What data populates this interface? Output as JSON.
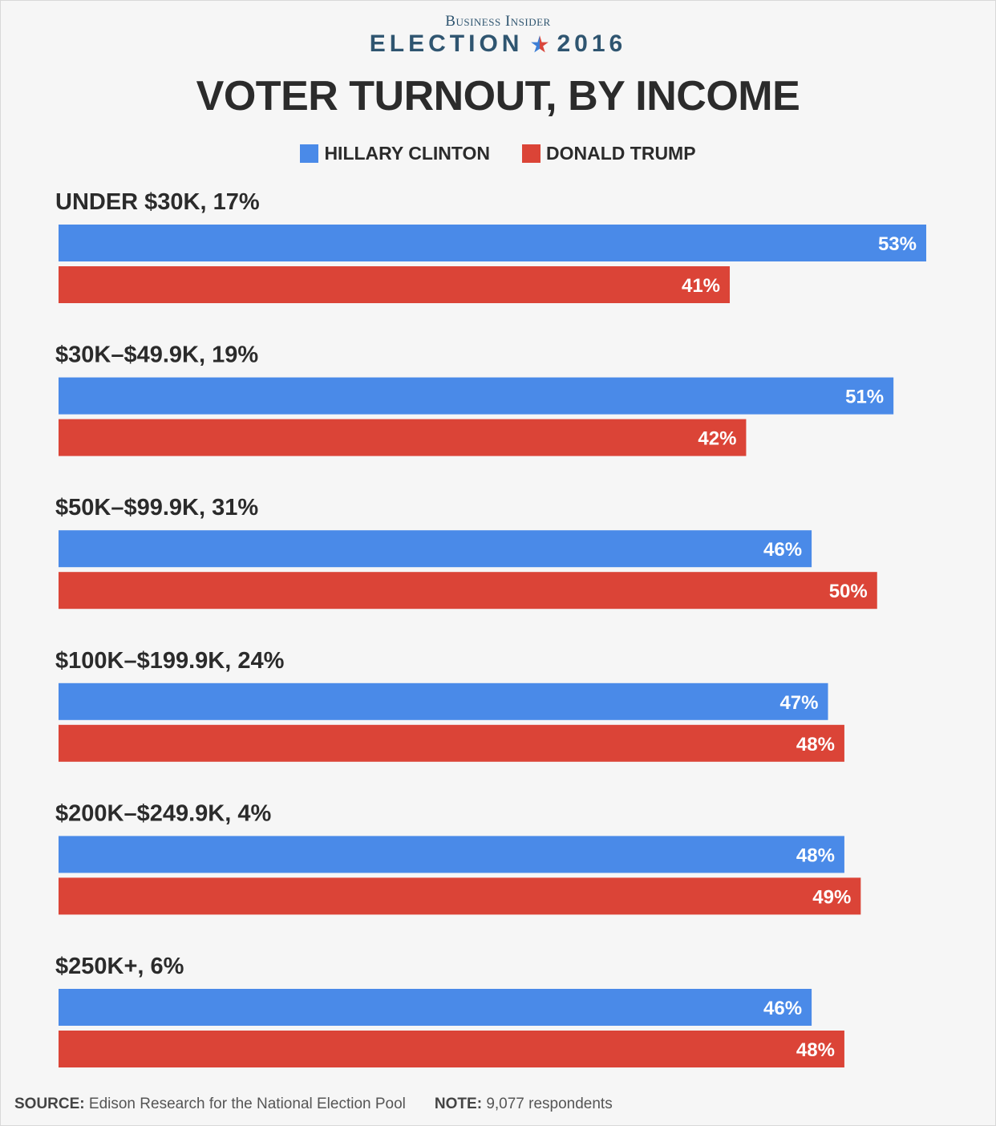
{
  "header": {
    "brand": "Business Insider",
    "edition_word": "ELECTION",
    "edition_year": "2016",
    "title": "VOTER TURNOUT, BY INCOME"
  },
  "colors": {
    "clinton": "#4a8ae8",
    "trump": "#db4437",
    "star_blue": "#3d7fd6",
    "star_red": "#d9463c"
  },
  "footer": {
    "source_label": "SOURCE:",
    "source_text": "Edison Research for the National Election Pool",
    "note_label": "NOTE:",
    "note_text": "9,077 respondents"
  },
  "chart_data": {
    "type": "bar",
    "orientation": "horizontal",
    "title": "VOTER TURNOUT, BY INCOME",
    "categories": [
      "UNDER $30K, 17%",
      "$30K–$49.9K, 19%",
      "$50K–$99.9K, 31%",
      "$100K–$199.9K, 24%",
      "$200K–$249.9K, 4%",
      "$250K+, 6%"
    ],
    "series": [
      {
        "name": "HILLARY CLINTON",
        "values": [
          53,
          51,
          46,
          47,
          48,
          46
        ],
        "labels": [
          "53%",
          "51%",
          "46%",
          "47%",
          "48%",
          "46%"
        ]
      },
      {
        "name": "DONALD TRUMP",
        "values": [
          41,
          42,
          50,
          48,
          49,
          48
        ],
        "labels": [
          "41%",
          "42%",
          "50%",
          "48%",
          "49%",
          "48%"
        ]
      }
    ],
    "xlim": [
      0,
      53
    ],
    "legend": "top-center",
    "grid": false
  }
}
